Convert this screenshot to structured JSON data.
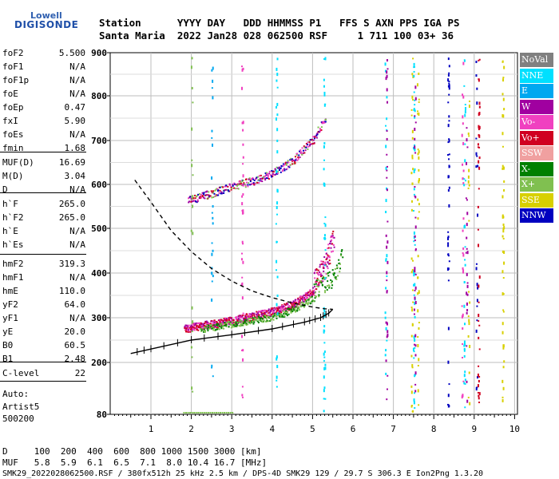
{
  "logo": {
    "line1": "Lowell",
    "line2": "DIGISONDE"
  },
  "header": {
    "line1": "Station      YYYY DAY   DDD HHMMSS P1   FFS S AXN PPS IGA PS",
    "line2": "Santa Maria  2022 Jan28 028 062500 RSF     1 711 100 03+ 36"
  },
  "params": [
    {
      "name": "foF2",
      "value": "5.500"
    },
    {
      "name": "foF1",
      "value": "N/A"
    },
    {
      "name": "foF1p",
      "value": "N/A"
    },
    {
      "name": "foE",
      "value": "N/A"
    },
    {
      "name": "foEp",
      "value": "0.47"
    },
    {
      "name": "fxI",
      "value": "5.90"
    },
    {
      "name": "foEs",
      "value": "N/A"
    },
    {
      "name": "fmin",
      "value": "1.68"
    },
    {
      "name": "MUF(D)",
      "value": "16.69"
    },
    {
      "name": "M(D)",
      "value": "3.04"
    },
    {
      "name": "D",
      "value": "N/A"
    },
    {
      "name": "h`F",
      "value": "265.0"
    },
    {
      "name": "h`F2",
      "value": "265.0"
    },
    {
      "name": "h`E",
      "value": "N/A"
    },
    {
      "name": "h`Es",
      "value": "N/A"
    },
    {
      "name": "hmF2",
      "value": "319.3"
    },
    {
      "name": "hmF1",
      "value": "N/A"
    },
    {
      "name": "hmE",
      "value": "110.0"
    },
    {
      "name": "yF2",
      "value": "64.0"
    },
    {
      "name": "yF1",
      "value": "N/A"
    },
    {
      "name": "yE",
      "value": "20.0"
    },
    {
      "name": "B0",
      "value": "60.5"
    },
    {
      "name": "B1",
      "value": "2.48"
    },
    {
      "name": "C-level",
      "value": "22"
    }
  ],
  "auto": {
    "line1": "Auto:",
    "line2": "Artist5",
    "line3": "500200"
  },
  "footer": {
    "d_row": "D     100  200  400  600  800 1000 1500 3000 [km]",
    "muf_row": "MUF   5.8  5.9  6.1  6.5  7.1  8.0 10.4 16.7 [MHz]",
    "info": "SMK29_2022028062500.RSF / 380fx512h 25 kHz 2.5 km / DPS-4D SMK29 129 / 29.7 S 306.3 E Ion2Png 1.3.20"
  },
  "legend": [
    {
      "label": "NoVal",
      "color": "#808080"
    },
    {
      "label": "NNE",
      "color": "#00e0ff"
    },
    {
      "label": "E",
      "color": "#00a8f0"
    },
    {
      "label": "W",
      "color": "#a000a0"
    },
    {
      "label": "Vo-",
      "color": "#f040c0"
    },
    {
      "label": "Vo+",
      "color": "#d00020"
    },
    {
      "label": "SSW",
      "color": "#f0a0a0"
    },
    {
      "label": "X-",
      "color": "#008000"
    },
    {
      "label": "X+",
      "color": "#80c050"
    },
    {
      "label": "SSE",
      "color": "#d8d000"
    },
    {
      "label": "NNW",
      "color": "#0000c0"
    }
  ],
  "chart_data": {
    "type": "scatter",
    "x_ticks": [
      "1",
      "2",
      "3",
      "4",
      "5",
      "6",
      "7",
      "8",
      "9",
      "10"
    ],
    "y_ticks": [
      "80",
      "200",
      "300",
      "400",
      "500",
      "600",
      "700",
      "800",
      "900"
    ],
    "xlim": [
      0.5,
      10.5
    ],
    "ylim_note": "nonlinear virtual height axis",
    "profile": [
      [
        0.6,
        610
      ],
      [
        1.0,
        560
      ],
      [
        1.5,
        495
      ],
      [
        2.0,
        448
      ],
      [
        2.5,
        410
      ],
      [
        3.0,
        382
      ],
      [
        3.5,
        360
      ],
      [
        4.0,
        345
      ],
      [
        4.5,
        333
      ],
      [
        5.0,
        324
      ],
      [
        5.3,
        320
      ],
      [
        5.5,
        319
      ],
      [
        5.4,
        310
      ],
      [
        5.2,
        300
      ],
      [
        4.8,
        290
      ],
      [
        4.0,
        275
      ],
      [
        3.0,
        262
      ],
      [
        2.0,
        250
      ],
      [
        1.0,
        230
      ],
      [
        0.5,
        220
      ]
    ],
    "o_trace": [
      [
        1.8,
        268
      ],
      [
        2.5,
        278
      ],
      [
        3.0,
        286
      ],
      [
        3.5,
        296
      ],
      [
        4.0,
        306
      ],
      [
        4.5,
        322
      ],
      [
        5.0,
        352
      ],
      [
        5.3,
        392
      ],
      [
        5.5,
        455
      ]
    ],
    "x_trace": [
      [
        2.2,
        268
      ],
      [
        3.0,
        280
      ],
      [
        3.5,
        288
      ],
      [
        4.0,
        296
      ],
      [
        4.5,
        312
      ],
      [
        5.0,
        338
      ],
      [
        5.5,
        370
      ],
      [
        5.7,
        415
      ]
    ],
    "second_hop": [
      [
        1.9,
        555
      ],
      [
        2.5,
        572
      ],
      [
        3.0,
        588
      ],
      [
        3.5,
        600
      ],
      [
        4.0,
        618
      ],
      [
        4.5,
        646
      ],
      [
        5.0,
        695
      ],
      [
        5.3,
        745
      ]
    ]
  }
}
